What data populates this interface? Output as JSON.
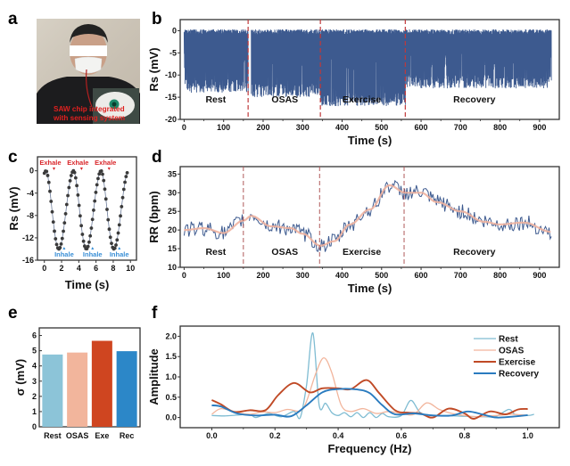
{
  "panel_labels": [
    "a",
    "b",
    "c",
    "d",
    "e",
    "f"
  ],
  "photo": {
    "caption_line1": "SAW chip integrated",
    "caption_line2": "with sensing system",
    "caption_color": "#e0201f"
  },
  "chart_data": [
    {
      "id": "b",
      "type": "line",
      "title": "",
      "xlabel": "Time (s)",
      "ylabel": "Rs (mV)",
      "xlim": [
        -10,
        950
      ],
      "ylim": [
        -20,
        2.5
      ],
      "xticks": [
        0,
        100,
        200,
        300,
        400,
        500,
        600,
        700,
        800,
        900
      ],
      "yticks": [
        0,
        -5,
        -10,
        -15,
        -20
      ],
      "segments": [
        {
          "name": "Rest",
          "start": 0,
          "end": 162,
          "trough": -12.5
        },
        {
          "name": "OSAS",
          "start": 170,
          "end": 345,
          "trough": -13.5
        },
        {
          "name": "Exercise",
          "start": 345,
          "end": 560,
          "trough": -15.5
        },
        {
          "name": "Recovery",
          "start": 560,
          "end": 930,
          "trough": -11.5
        }
      ],
      "dividers": [
        162,
        345,
        560
      ],
      "series_color": "#3d5a8f",
      "divider_color": "#c0393b",
      "description": "Dense respiratory oscillation between ~0 mV and segment troughs"
    },
    {
      "id": "c",
      "type": "scatter",
      "xlabel": "Time (s)",
      "ylabel": "Rs (mV)",
      "xlim": [
        -0.8,
        10.7
      ],
      "ylim": [
        -16,
        2.5
      ],
      "xticks": [
        0,
        2,
        4,
        6,
        8,
        10
      ],
      "yticks": [
        0,
        -4,
        -8,
        -12,
        -16
      ],
      "period_s": 3.2,
      "min_mV": -14,
      "max_mV": 0,
      "annotations": [
        {
          "text": "Exhale",
          "x": 0.7,
          "kind": "exhale"
        },
        {
          "text": "Exhale",
          "x": 3.9,
          "kind": "exhale"
        },
        {
          "text": "Exhale",
          "x": 7.1,
          "kind": "exhale"
        },
        {
          "text": "Inhale",
          "x": 2.3,
          "kind": "inhale"
        },
        {
          "text": "Inhale",
          "x": 5.6,
          "kind": "inhale"
        },
        {
          "text": "Inhale",
          "x": 8.7,
          "kind": "inhale"
        }
      ],
      "exhale_color": "#d9262a",
      "inhale_color": "#3a8fd6"
    },
    {
      "id": "d",
      "type": "line",
      "xlabel": "Time (s)",
      "ylabel": "RR (bpm)",
      "xlim": [
        -10,
        950
      ],
      "ylim": [
        10,
        37
      ],
      "xticks": [
        0,
        100,
        200,
        300,
        400,
        500,
        600,
        700,
        800,
        900
      ],
      "yticks": [
        10,
        15,
        20,
        25,
        30,
        35
      ],
      "dividers": [
        150,
        343,
        557
      ],
      "segments": [
        "Rest",
        "OSAS",
        "Exercise",
        "Recovery"
      ],
      "smooth_trend": {
        "x": [
          0,
          50,
          100,
          150,
          170,
          220,
          270,
          300,
          345,
          380,
          420,
          470,
          520,
          560,
          600,
          640,
          700,
          760,
          800,
          860,
          930
        ],
        "y": [
          20,
          20.5,
          19.2,
          22.5,
          23.8,
          21,
          20.5,
          19,
          15.8,
          17,
          21.5,
          25.5,
          32,
          30,
          30,
          27.5,
          25,
          22.2,
          21.5,
          22,
          19.5
        ]
      },
      "raw_color": "#3d5a8f",
      "smooth_color": "#efb3a0",
      "divider_color": "#b05a5a"
    },
    {
      "id": "e",
      "type": "bar",
      "xlabel": "",
      "ylabel": "σ (mV)",
      "ylim": [
        0,
        6.5
      ],
      "yticks": [
        0,
        1,
        2,
        3,
        4,
        5,
        6
      ],
      "categories": [
        "Rest",
        "OSAS",
        "Exe",
        "Rec"
      ],
      "values": [
        4.75,
        4.88,
        5.65,
        4.97
      ],
      "colors": [
        "#8cc4d8",
        "#f2b59c",
        "#cf4520",
        "#2c87c8"
      ]
    },
    {
      "id": "f",
      "type": "line",
      "xlabel": "Frequency (Hz)",
      "ylabel": "Amplitude",
      "xlim": [
        -0.1,
        1.1
      ],
      "ylim": [
        -0.25,
        2.25
      ],
      "xticks": [
        0.0,
        0.2,
        0.4,
        0.6,
        0.8,
        1.0
      ],
      "yticks": [
        0.0,
        0.5,
        1.0,
        1.5,
        2.0
      ],
      "legend_position": "top-right",
      "series": [
        {
          "name": "Rest",
          "color": "#7fbcd2",
          "x": [
            0,
            0.04,
            0.08,
            0.12,
            0.14,
            0.18,
            0.22,
            0.26,
            0.28,
            0.3,
            0.32,
            0.34,
            0.36,
            0.38,
            0.4,
            0.42,
            0.44,
            0.46,
            0.48,
            0.5,
            0.52,
            0.54,
            0.56,
            0.6,
            0.63,
            0.66,
            0.7,
            0.74,
            0.8,
            0.86,
            0.9,
            0.94,
            0.96,
            1.0,
            1.02
          ],
          "y": [
            0.05,
            0.04,
            0.06,
            0.08,
            0.0,
            0.1,
            0.02,
            0.15,
            0.0,
            0.8,
            2.08,
            0.3,
            0.35,
            0.12,
            0.05,
            0.12,
            0.02,
            0.12,
            0.0,
            0.12,
            0.0,
            0.1,
            0.02,
            0.05,
            0.42,
            0.12,
            0.06,
            0.05,
            0.03,
            0.02,
            0.03,
            0.2,
            0.08,
            0.05,
            0.08
          ]
        },
        {
          "name": "OSAS",
          "color": "#f2b59c",
          "x": [
            0,
            0.03,
            0.08,
            0.12,
            0.16,
            0.2,
            0.24,
            0.28,
            0.3,
            0.33,
            0.355,
            0.38,
            0.41,
            0.44,
            0.48,
            0.52,
            0.56,
            0.6,
            0.64,
            0.68,
            0.72,
            0.76,
            0.8,
            0.84,
            0.9,
            0.95,
            1.0
          ],
          "y": [
            0.08,
            0.22,
            0.12,
            0.08,
            0.14,
            0.12,
            0.2,
            0.16,
            0.4,
            1.1,
            1.47,
            1.1,
            0.3,
            0.15,
            0.22,
            0.1,
            0.15,
            0.1,
            0.08,
            0.36,
            0.2,
            0.1,
            0.05,
            0.02,
            0.05,
            0.08,
            0.05
          ]
        },
        {
          "name": "Exercise",
          "color": "#c04a26",
          "x": [
            0,
            0.03,
            0.07,
            0.12,
            0.17,
            0.21,
            0.26,
            0.31,
            0.35,
            0.4,
            0.44,
            0.49,
            0.53,
            0.58,
            0.62,
            0.66,
            0.7,
            0.75,
            0.8,
            0.83,
            0.88,
            0.93,
            0.97,
            1.0
          ],
          "y": [
            0.43,
            0.32,
            0.14,
            0.18,
            0.18,
            0.55,
            0.85,
            0.62,
            0.72,
            0.72,
            0.7,
            0.92,
            0.6,
            0.18,
            0.12,
            0.1,
            0.0,
            0.22,
            0.1,
            -0.03,
            0.15,
            0.08,
            0.2,
            0.21
          ]
        },
        {
          "name": "Recovery",
          "color": "#2a7bbf",
          "x": [
            0,
            0.03,
            0.08,
            0.14,
            0.2,
            0.25,
            0.3,
            0.35,
            0.4,
            0.46,
            0.5,
            0.54,
            0.58,
            0.64,
            0.7,
            0.76,
            0.81,
            0.86,
            0.9,
            0.95,
            1.0
          ],
          "y": [
            0.3,
            0.27,
            0.1,
            0.05,
            0.07,
            0.03,
            0.3,
            0.62,
            0.7,
            0.69,
            0.6,
            0.3,
            0.08,
            0.1,
            0.05,
            0.05,
            0.15,
            0.07,
            0.0,
            0.02,
            0.06
          ]
        }
      ]
    }
  ]
}
